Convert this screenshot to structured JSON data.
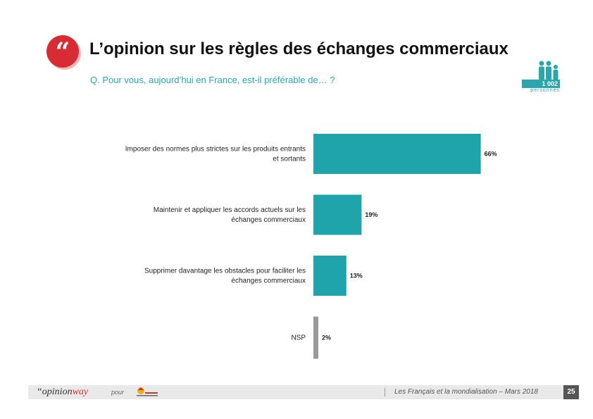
{
  "header": {
    "icon": "quote-icon",
    "quote_glyph": "“",
    "title": "L’opinion sur les règles des échanges commerciaux",
    "question": "Q. Pour vous, aujourd’hui en France, est-il préférable de… ?"
  },
  "sample": {
    "icon": "people-icon",
    "count": "1 002",
    "label": "personnes"
  },
  "chart_data": {
    "type": "bar",
    "orientation": "horizontal",
    "categories": [
      "Imposer des normes plus strictes sur les produits entrants et sortants",
      "Maintenir et appliquer les accords actuels sur les échanges commerciaux",
      "Supprimer davantage les obstacles pour faciliter les échanges commerciaux",
      "NSP"
    ],
    "values": [
      66,
      19,
      13,
      2
    ],
    "data_labels": [
      "66%",
      "19%",
      "13%",
      "2%"
    ],
    "bar_colors": [
      "#1fa4ab",
      "#1fa4ab",
      "#1fa4ab",
      "#999999"
    ],
    "xlim": [
      0,
      100
    ],
    "grid": false,
    "legend": "none"
  },
  "footer": {
    "brand_part1": "“opinion",
    "brand_part2": "way",
    "pour": "pour",
    "client_logo": "client-logo-icon",
    "study": "Les Français et la mondialisation – Mars 2018",
    "page": "25"
  }
}
